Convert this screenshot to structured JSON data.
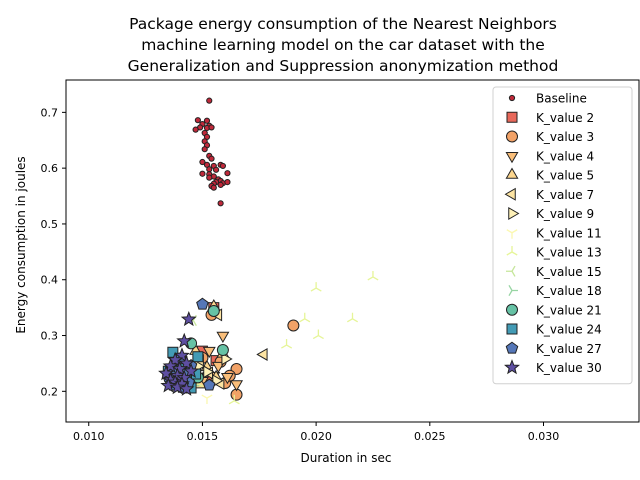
{
  "chart_data": {
    "type": "scatter",
    "title_lines": [
      "Package energy consumption of the Nearest Neighbors",
      "machine learning model on the car dataset with the",
      "Generalization and Suppression anonymization method"
    ],
    "xlabel": "Duration in sec",
    "ylabel": "Energy consumption in joules",
    "xlim": [
      0.009,
      0.0342
    ],
    "ylim": [
      0.145,
      0.758
    ],
    "xticks": [
      0.01,
      0.015,
      0.02,
      0.025,
      0.03
    ],
    "xtick_labels": [
      "0.010",
      "0.015",
      "0.020",
      "0.025",
      "0.030"
    ],
    "yticks": [
      0.2,
      0.3,
      0.4,
      0.5,
      0.6,
      0.7
    ],
    "ytick_labels": [
      "0.2",
      "0.3",
      "0.4",
      "0.5",
      "0.6",
      "0.7"
    ],
    "grid": false,
    "legend_position": "top-right",
    "series": [
      {
        "name": "Baseline",
        "marker": "circle-small",
        "color": "#c0283a",
        "points": [
          [
            0.0153,
            0.721
          ],
          [
            0.0148,
            0.686
          ],
          [
            0.0152,
            0.685
          ],
          [
            0.015,
            0.679
          ],
          [
            0.0153,
            0.676
          ],
          [
            0.0149,
            0.673
          ],
          [
            0.0152,
            0.672
          ],
          [
            0.0154,
            0.673
          ],
          [
            0.0147,
            0.669
          ],
          [
            0.0151,
            0.663
          ],
          [
            0.0152,
            0.656
          ],
          [
            0.0151,
            0.648
          ],
          [
            0.0152,
            0.641
          ],
          [
            0.0151,
            0.634
          ],
          [
            0.0153,
            0.622
          ],
          [
            0.0154,
            0.617
          ],
          [
            0.015,
            0.611
          ],
          [
            0.0152,
            0.606
          ],
          [
            0.0155,
            0.604
          ],
          [
            0.0158,
            0.606
          ],
          [
            0.0159,
            0.604
          ],
          [
            0.0153,
            0.598
          ],
          [
            0.0156,
            0.597
          ],
          [
            0.015,
            0.59
          ],
          [
            0.0153,
            0.589
          ],
          [
            0.0161,
            0.591
          ],
          [
            0.0155,
            0.585
          ],
          [
            0.0153,
            0.583
          ],
          [
            0.0157,
            0.58
          ],
          [
            0.0158,
            0.577
          ],
          [
            0.0156,
            0.575
          ],
          [
            0.0159,
            0.573
          ],
          [
            0.0161,
            0.575
          ],
          [
            0.0155,
            0.572
          ],
          [
            0.0158,
            0.57
          ],
          [
            0.0154,
            0.568
          ],
          [
            0.0155,
            0.565
          ],
          [
            0.0158,
            0.537
          ]
        ]
      },
      {
        "name": "K_value 2",
        "marker": "square",
        "color": "#e8685a",
        "points": [
          [
            0.0155,
            0.35
          ],
          [
            0.015,
            0.272
          ],
          [
            0.0156,
            0.255
          ],
          [
            0.0145,
            0.235
          ],
          [
            0.0141,
            0.226
          ],
          [
            0.0148,
            0.223
          ],
          [
            0.0152,
            0.218
          ],
          [
            0.0138,
            0.214
          ],
          [
            0.0144,
            0.21
          ]
        ]
      },
      {
        "name": "K_value 3",
        "marker": "circle",
        "color": "#f2a267",
        "points": [
          [
            0.019,
            0.318
          ],
          [
            0.0154,
            0.337
          ],
          [
            0.0165,
            0.24
          ],
          [
            0.016,
            0.215
          ],
          [
            0.0165,
            0.194
          ],
          [
            0.0162,
            0.228
          ],
          [
            0.015,
            0.26
          ],
          [
            0.0158,
            0.253
          ],
          [
            0.0145,
            0.232
          ]
        ]
      },
      {
        "name": "K_value 4",
        "marker": "triangle-down",
        "color": "#f9be7a",
        "points": [
          [
            0.0159,
            0.3
          ],
          [
            0.0165,
            0.213
          ],
          [
            0.0153,
            0.273
          ],
          [
            0.0157,
            0.246
          ],
          [
            0.0147,
            0.238
          ],
          [
            0.0155,
            0.228
          ],
          [
            0.0161,
            0.226
          ],
          [
            0.015,
            0.219
          ]
        ]
      },
      {
        "name": "K_value 5",
        "marker": "triangle-up",
        "color": "#fcd68e",
        "points": [
          [
            0.0155,
            0.352
          ],
          [
            0.0147,
            0.272
          ],
          [
            0.0159,
            0.267
          ],
          [
            0.0152,
            0.243
          ],
          [
            0.0146,
            0.233
          ],
          [
            0.0156,
            0.225
          ],
          [
            0.0149,
            0.212
          ]
        ]
      },
      {
        "name": "K_value 7",
        "marker": "triangle-left",
        "color": "#fde4a3",
        "points": [
          [
            0.0177,
            0.266
          ],
          [
            0.0157,
            0.337
          ],
          [
            0.0149,
            0.255
          ],
          [
            0.0153,
            0.233
          ],
          [
            0.0158,
            0.214
          ],
          [
            0.0145,
            0.222
          ]
        ]
      },
      {
        "name": "K_value 9",
        "marker": "triangle-right",
        "color": "#fef1b8",
        "points": [
          [
            0.016,
            0.258
          ],
          [
            0.0148,
            0.245
          ],
          [
            0.0152,
            0.235
          ],
          [
            0.0142,
            0.226
          ],
          [
            0.0156,
            0.219
          ]
        ]
      },
      {
        "name": "K_value 11",
        "marker": "tri-down",
        "color": "#fbf8b0",
        "points": [
          [
            0.0152,
            0.188
          ],
          [
            0.014,
            0.232
          ],
          [
            0.0146,
            0.226
          ]
        ]
      },
      {
        "name": "K_value 13",
        "marker": "tri-up",
        "color": "#e6f598",
        "points": [
          [
            0.0225,
            0.405
          ],
          [
            0.02,
            0.385
          ],
          [
            0.0216,
            0.33
          ],
          [
            0.0195,
            0.33
          ],
          [
            0.0201,
            0.3
          ],
          [
            0.0187,
            0.283
          ],
          [
            0.0164,
            0.183
          ],
          [
            0.0148,
            0.214
          ],
          [
            0.0143,
            0.238
          ]
        ]
      },
      {
        "name": "K_value 15",
        "marker": "tri-left",
        "color": "#c6e69b",
        "points": [
          [
            0.0146,
            0.327
          ],
          [
            0.0147,
            0.228
          ],
          [
            0.014,
            0.222
          ]
        ]
      },
      {
        "name": "K_value 18",
        "marker": "tri-right",
        "color": "#98d5a4",
        "points": [
          [
            0.0146,
            0.21
          ],
          [
            0.014,
            0.233
          ],
          [
            0.0138,
            0.217
          ]
        ]
      },
      {
        "name": "K_value 21",
        "marker": "circle",
        "color": "#66c2a5",
        "points": [
          [
            0.0155,
            0.344
          ],
          [
            0.0159,
            0.274
          ],
          [
            0.0145,
            0.286
          ],
          [
            0.0142,
            0.233
          ],
          [
            0.0148,
            0.225
          ],
          [
            0.0137,
            0.218
          ],
          [
            0.014,
            0.211
          ]
        ]
      },
      {
        "name": "K_value 24",
        "marker": "square",
        "color": "#439bb5",
        "points": [
          [
            0.0137,
            0.27
          ],
          [
            0.0148,
            0.262
          ],
          [
            0.0141,
            0.253
          ],
          [
            0.0144,
            0.244
          ],
          [
            0.0135,
            0.236
          ],
          [
            0.0147,
            0.231
          ],
          [
            0.0139,
            0.227
          ],
          [
            0.0143,
            0.222
          ],
          [
            0.0136,
            0.216
          ],
          [
            0.0141,
            0.211
          ],
          [
            0.0145,
            0.206
          ]
        ]
      },
      {
        "name": "K_value 27",
        "marker": "pentagon",
        "color": "#5577b8",
        "points": [
          [
            0.015,
            0.356
          ],
          [
            0.014,
            0.258
          ],
          [
            0.0145,
            0.246
          ],
          [
            0.0137,
            0.24
          ],
          [
            0.0142,
            0.232
          ],
          [
            0.0135,
            0.226
          ],
          [
            0.0139,
            0.221
          ],
          [
            0.0144,
            0.216
          ],
          [
            0.0137,
            0.211
          ],
          [
            0.0141,
            0.207
          ],
          [
            0.0153,
            0.211
          ]
        ]
      },
      {
        "name": "K_value 30",
        "marker": "star",
        "color": "#5e4fa2",
        "points": [
          [
            0.0144,
            0.329
          ],
          [
            0.0142,
            0.29
          ],
          [
            0.0141,
            0.264
          ],
          [
            0.0138,
            0.256
          ],
          [
            0.0143,
            0.25
          ],
          [
            0.0136,
            0.245
          ],
          [
            0.014,
            0.24
          ],
          [
            0.0145,
            0.236
          ],
          [
            0.0134,
            0.232
          ],
          [
            0.0139,
            0.228
          ],
          [
            0.0142,
            0.224
          ],
          [
            0.0136,
            0.22
          ],
          [
            0.0138,
            0.216
          ],
          [
            0.0141,
            0.213
          ],
          [
            0.0135,
            0.21
          ],
          [
            0.0139,
            0.207
          ],
          [
            0.0143,
            0.204
          ]
        ]
      }
    ]
  }
}
